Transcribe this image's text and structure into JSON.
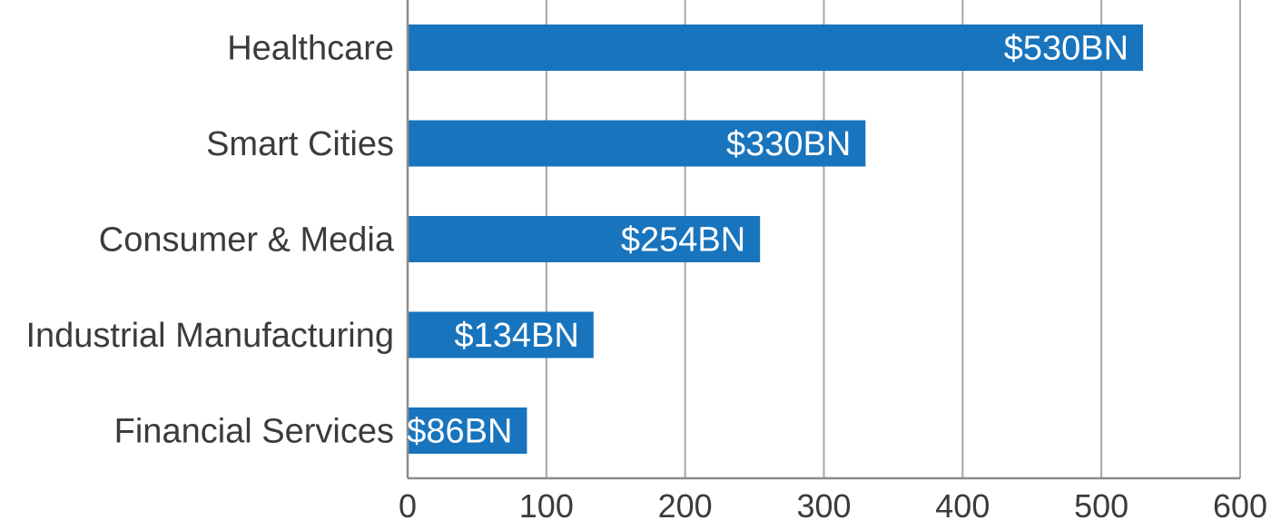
{
  "chart_data": {
    "type": "bar",
    "orientation": "horizontal",
    "categories": [
      "Healthcare",
      "Smart Cities",
      "Consumer & Media",
      "Industrial Manufacturing",
      "Financial Services"
    ],
    "values": [
      530,
      330,
      254,
      134,
      86
    ],
    "data_labels": [
      "$530BN",
      "$330BN",
      "$254BN",
      "$134BN",
      "$86BN"
    ],
    "x_ticks": [
      "0",
      "100",
      "200",
      "300",
      "400",
      "500",
      "600"
    ],
    "xlim": [
      0,
      600
    ],
    "grid": "vertical",
    "legend": "none",
    "colors": {
      "bar": "#1874bd",
      "grid": "#a6a6a6",
      "axis": "#8c8c8c",
      "text": "#3b3b3b",
      "bar_label": "#ffffff"
    }
  }
}
